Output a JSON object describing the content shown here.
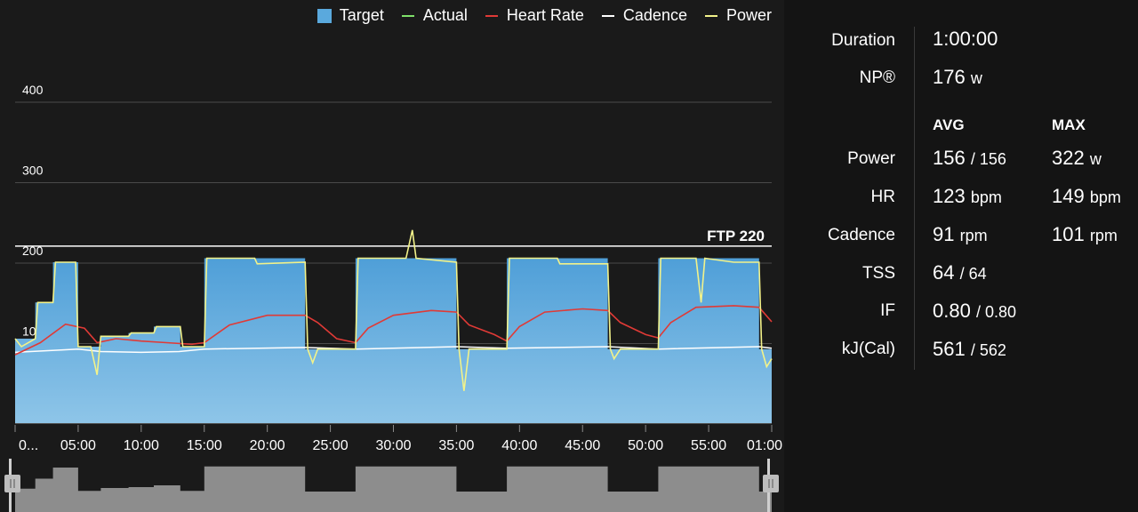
{
  "legend": {
    "items": [
      {
        "label": "Target",
        "kind": "box",
        "color": "#5aa9dd"
      },
      {
        "label": "Actual",
        "kind": "line",
        "color": "#7ee06a"
      },
      {
        "label": "Heart Rate",
        "kind": "line",
        "color": "#e03a36"
      },
      {
        "label": "Cadence",
        "kind": "line",
        "color": "#ffffff"
      },
      {
        "label": "Power",
        "kind": "line",
        "color": "#f2f28a"
      }
    ]
  },
  "chart_data": {
    "type": "area",
    "x_unit": "minutes",
    "xlim": [
      0,
      60
    ],
    "ylim": [
      0,
      420
    ],
    "yticks": [
      "400",
      "300",
      "200",
      "100"
    ],
    "ytick_values": [
      400,
      300,
      200,
      100
    ],
    "xticks": [
      "0...",
      "05:00",
      "10:00",
      "15:00",
      "20:00",
      "25:00",
      "30:00",
      "35:00",
      "40:00",
      "45:00",
      "50:00",
      "55:00",
      "01:00"
    ],
    "ftp": {
      "label": "FTP 220",
      "value": 220
    },
    "colors": {
      "target": "#5aa9dd",
      "heart_rate": "#e03a36",
      "cadence": "#ffffff",
      "power": "#f2f28a",
      "ftp": "#ffffff"
    },
    "series": [
      {
        "name": "Target",
        "points": [
          [
            0,
            105
          ],
          [
            1.6,
            105
          ],
          [
            1.6,
            150
          ],
          [
            3,
            150
          ],
          [
            3,
            200
          ],
          [
            5,
            200
          ],
          [
            5,
            95
          ],
          [
            6.8,
            95
          ],
          [
            6.8,
            108
          ],
          [
            9,
            108
          ],
          [
            9,
            112
          ],
          [
            11,
            112
          ],
          [
            11,
            120
          ],
          [
            13.1,
            120
          ],
          [
            13.1,
            95
          ],
          [
            15,
            95
          ],
          [
            15,
            205
          ],
          [
            23,
            205
          ],
          [
            23,
            92
          ],
          [
            27,
            92
          ],
          [
            27,
            205
          ],
          [
            35,
            205
          ],
          [
            35,
            92
          ],
          [
            39,
            92
          ],
          [
            39,
            205
          ],
          [
            47,
            205
          ],
          [
            47,
            92
          ],
          [
            51,
            92
          ],
          [
            51,
            205
          ],
          [
            59,
            205
          ],
          [
            59,
            92
          ],
          [
            60,
            92
          ]
        ]
      },
      {
        "name": "Power",
        "points": [
          [
            0,
            105
          ],
          [
            0.5,
            95
          ],
          [
            1.6,
            105
          ],
          [
            1.8,
            150
          ],
          [
            3,
            150
          ],
          [
            3.2,
            200
          ],
          [
            4.8,
            200
          ],
          [
            5,
            95
          ],
          [
            6,
            95
          ],
          [
            6.5,
            60
          ],
          [
            6.8,
            108
          ],
          [
            9,
            108
          ],
          [
            9.2,
            112
          ],
          [
            11,
            112
          ],
          [
            11.2,
            120
          ],
          [
            13.1,
            120
          ],
          [
            13.3,
            95
          ],
          [
            15,
            95
          ],
          [
            15.2,
            205
          ],
          [
            19,
            205
          ],
          [
            19.2,
            198
          ],
          [
            23,
            200
          ],
          [
            23.2,
            92
          ],
          [
            23.6,
            75
          ],
          [
            24,
            92
          ],
          [
            27,
            92
          ],
          [
            27.2,
            205
          ],
          [
            31,
            205
          ],
          [
            31.5,
            240
          ],
          [
            31.8,
            205
          ],
          [
            35,
            200
          ],
          [
            35.2,
            92
          ],
          [
            35.6,
            40
          ],
          [
            36,
            92
          ],
          [
            39,
            92
          ],
          [
            39.2,
            205
          ],
          [
            43,
            205
          ],
          [
            43.2,
            198
          ],
          [
            47,
            198
          ],
          [
            47.2,
            92
          ],
          [
            47.5,
            80
          ],
          [
            48,
            92
          ],
          [
            51,
            92
          ],
          [
            51.2,
            205
          ],
          [
            54,
            205
          ],
          [
            54.4,
            150
          ],
          [
            54.7,
            205
          ],
          [
            57,
            200
          ],
          [
            59,
            200
          ],
          [
            59.2,
            92
          ],
          [
            59.6,
            70
          ],
          [
            60,
            80
          ]
        ]
      },
      {
        "name": "Heart Rate",
        "points": [
          [
            0,
            85
          ],
          [
            2,
            100
          ],
          [
            4,
            123
          ],
          [
            5.5,
            118
          ],
          [
            6.5,
            100
          ],
          [
            8,
            105
          ],
          [
            10,
            102
          ],
          [
            12,
            100
          ],
          [
            14,
            98
          ],
          [
            15,
            100
          ],
          [
            17,
            122
          ],
          [
            20,
            134
          ],
          [
            23,
            134
          ],
          [
            24,
            125
          ],
          [
            25.5,
            105
          ],
          [
            27,
            100
          ],
          [
            28,
            118
          ],
          [
            30,
            134
          ],
          [
            33,
            140
          ],
          [
            35,
            138
          ],
          [
            36,
            122
          ],
          [
            38,
            110
          ],
          [
            39,
            102
          ],
          [
            40,
            120
          ],
          [
            42,
            138
          ],
          [
            45,
            142
          ],
          [
            47,
            140
          ],
          [
            48,
            125
          ],
          [
            50,
            110
          ],
          [
            51,
            106
          ],
          [
            52,
            125
          ],
          [
            54,
            144
          ],
          [
            57,
            146
          ],
          [
            59,
            144
          ],
          [
            60,
            126
          ]
        ]
      },
      {
        "name": "Cadence",
        "points": [
          [
            0,
            88
          ],
          [
            5,
            92
          ],
          [
            6.8,
            89
          ],
          [
            10,
            88
          ],
          [
            13,
            89
          ],
          [
            15,
            92
          ],
          [
            23,
            94
          ],
          [
            27,
            92
          ],
          [
            35,
            95
          ],
          [
            39,
            93
          ],
          [
            47,
            95
          ],
          [
            51,
            92
          ],
          [
            59,
            95
          ],
          [
            60,
            93
          ]
        ]
      }
    ]
  },
  "stats": {
    "duration": {
      "label": "Duration",
      "value": "1:00:00"
    },
    "np": {
      "label": "NP®",
      "value": "176",
      "unit": "w"
    },
    "headers": {
      "avg": "AVG",
      "max": "MAX"
    },
    "rows": [
      {
        "label": "Power",
        "avg": "156",
        "avg2": "/ 156",
        "max": "322",
        "max_unit": "w"
      },
      {
        "label": "HR",
        "avg": "123",
        "avg_unit": "bpm",
        "max": "149",
        "max_unit": "bpm"
      },
      {
        "label": "Cadence",
        "avg": "91",
        "avg_unit": "rpm",
        "max": "101",
        "max_unit": "rpm"
      },
      {
        "label": "TSS",
        "avg": "64",
        "avg2": "/ 64"
      },
      {
        "label": "IF",
        "avg": "0.80",
        "avg2": "/ 0.80"
      },
      {
        "label": "kJ(Cal)",
        "avg": "561",
        "avg2": "/ 562"
      }
    ]
  }
}
